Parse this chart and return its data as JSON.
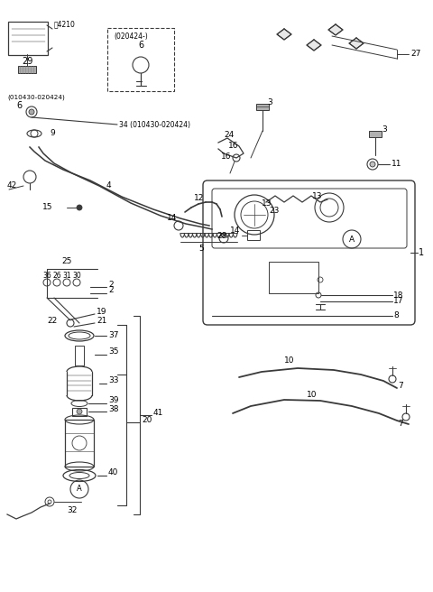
{
  "bg_color": "#ffffff",
  "line_color": "#3a3a3a",
  "text_color": "#000000",
  "fig_width": 4.8,
  "fig_height": 6.56,
  "dpi": 100
}
